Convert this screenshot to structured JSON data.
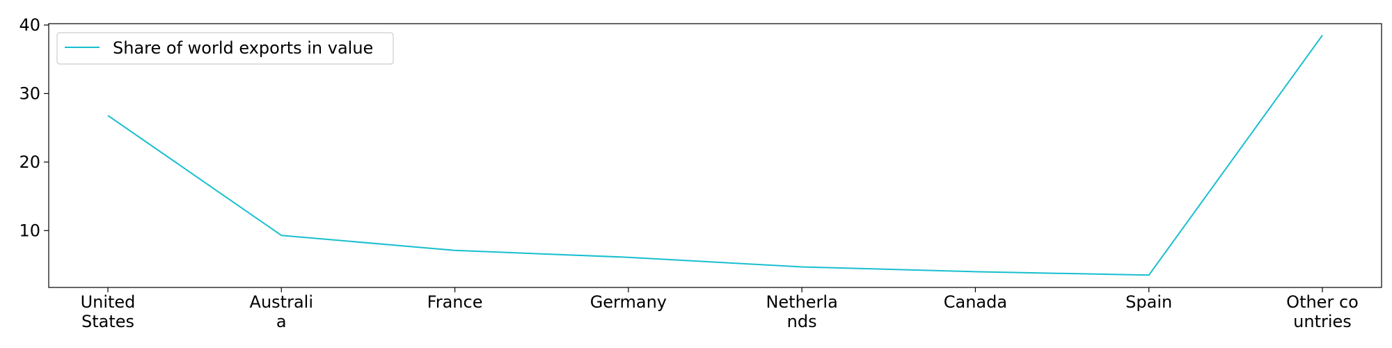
{
  "chart_data": {
    "type": "line",
    "title": "",
    "xlabel": "",
    "ylabel": "",
    "categories": [
      [
        "United",
        "States"
      ],
      [
        "Australi",
        "a"
      ],
      [
        "France"
      ],
      [
        "Germany"
      ],
      [
        "Netherla",
        "nds"
      ],
      [
        "Canada"
      ],
      [
        "Spain"
      ],
      [
        "Other co",
        "untries"
      ]
    ],
    "series": [
      {
        "name": "Share of world exports in value",
        "color": "#17becf",
        "values": [
          26.8,
          9.3,
          7.1,
          6.1,
          4.7,
          4.0,
          3.5,
          38.5
        ]
      }
    ],
    "ylim": [
      1.7,
      40.2
    ],
    "yticks": [
      10,
      20,
      30,
      40
    ],
    "grid": false,
    "legend": "upper-left"
  }
}
